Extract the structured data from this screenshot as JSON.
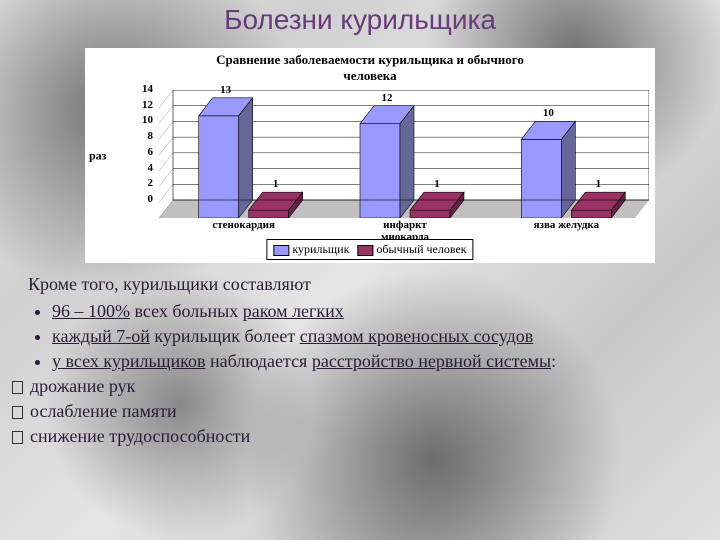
{
  "title": "Болезни курильщика",
  "chart": {
    "type": "bar",
    "title": "Сравнение заболеваемости курильщика и обычного\nчеловека",
    "title_fontsize": 13,
    "ylabel": "раз",
    "label_fontsize": 12,
    "categories": [
      "стенокардия",
      "инфаркт\nмиокарда",
      "язва желудка"
    ],
    "series": [
      {
        "name": "курильщик",
        "color": "#9999ff",
        "values": [
          13,
          12,
          10
        ],
        "shadow": "#666699"
      },
      {
        "name": "обычный человек",
        "color": "#993366",
        "values": [
          1,
          1,
          1
        ],
        "shadow": "#662244"
      }
    ],
    "ylim": [
      0,
      14
    ],
    "ytick_step": 2,
    "tick_fontsize": 11,
    "background_color": "#ffffff",
    "grid_color": "#000000",
    "legend_border": "#000000"
  },
  "content": {
    "lead": "Кроме того, курильщики составляют",
    "lead_fontsize": 18,
    "bullets": [
      {
        "prefix": "",
        "underlined1": "96 – 100%",
        "middle": " всех больных ",
        "underlined2": "раком легких",
        "suffix": ""
      },
      {
        "prefix": " ",
        "underlined1": "каждый 7-ой",
        "middle": " курильщик болеет ",
        "underlined2": "спазмом кровеносных сосудов",
        "suffix": ""
      },
      {
        "prefix": "",
        "underlined1": "у всех курильщиков",
        "middle": " наблюдается ",
        "underlined2": "расстройство нервной системы",
        "suffix": ":"
      }
    ],
    "bullet_fontsize": 18,
    "sublist": [
      "дрожание рук",
      " ослабление памяти",
      " снижение трудоспособности"
    ],
    "sublist_fontsize": 18
  }
}
